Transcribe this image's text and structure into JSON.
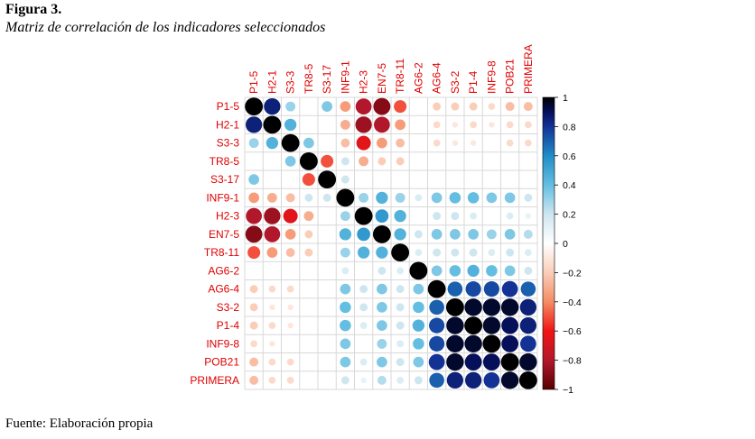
{
  "figure": {
    "label": "Figura 3.",
    "title": "Matriz de correlación de los indicadores seleccionados",
    "source": "Fuente: Elaboración propia"
  },
  "colors": {
    "positive_strong": "#000000",
    "positive": "#053061",
    "neutral": "#ffffff",
    "negative": "#67001f",
    "label": "#e00000"
  },
  "chart_data": {
    "type": "heatmap",
    "style": "correlation-circles",
    "variables": [
      "P1-5",
      "H2-1",
      "S3-3",
      "TR8-5",
      "S3-17",
      "INF9-1",
      "H2-3",
      "EN7-5",
      "TR8-11",
      "AG6-2",
      "AG6-4",
      "S3-2",
      "P1-4",
      "INF9-8",
      "POB21",
      "PRIMERA"
    ],
    "matrix": [
      [
        1.0,
        0.85,
        0.3,
        0.0,
        0.35,
        -0.35,
        -0.8,
        -0.9,
        -0.5,
        0.0,
        -0.2,
        -0.2,
        -0.2,
        -0.15,
        -0.25,
        -0.25
      ],
      [
        0.85,
        1.0,
        0.45,
        0.0,
        0.0,
        -0.3,
        -0.85,
        -0.8,
        -0.35,
        0.0,
        -0.15,
        -0.1,
        -0.15,
        -0.1,
        -0.15,
        -0.15
      ],
      [
        0.3,
        0.45,
        1.0,
        0.35,
        0.0,
        -0.25,
        -0.65,
        -0.35,
        -0.25,
        0.0,
        -0.15,
        -0.1,
        -0.1,
        0.0,
        -0.15,
        -0.15
      ],
      [
        0.0,
        0.0,
        0.35,
        1.0,
        -0.5,
        0.2,
        -0.3,
        -0.2,
        -0.2,
        0.0,
        0.0,
        0.0,
        0.0,
        0.0,
        0.0,
        0.0
      ],
      [
        0.35,
        0.0,
        0.0,
        -0.5,
        1.0,
        0.2,
        0.0,
        0.0,
        0.0,
        0.0,
        0.0,
        0.0,
        0.0,
        0.0,
        0.0,
        0.0
      ],
      [
        -0.35,
        -0.3,
        -0.25,
        0.2,
        0.2,
        1.0,
        0.3,
        0.45,
        0.3,
        0.15,
        0.35,
        0.4,
        0.4,
        0.35,
        0.35,
        0.2
      ],
      [
        -0.8,
        -0.85,
        -0.65,
        -0.3,
        0.0,
        0.3,
        1.0,
        0.55,
        0.45,
        0.0,
        0.2,
        0.2,
        0.15,
        0.0,
        0.15,
        0.1
      ],
      [
        -0.9,
        -0.8,
        -0.35,
        -0.2,
        0.0,
        0.45,
        0.55,
        1.0,
        0.45,
        0.2,
        0.35,
        0.35,
        0.35,
        0.3,
        0.35,
        0.25
      ],
      [
        -0.5,
        -0.35,
        -0.25,
        -0.2,
        0.0,
        0.3,
        0.45,
        0.45,
        1.0,
        0.15,
        0.2,
        0.2,
        0.2,
        0.15,
        0.2,
        0.15
      ],
      [
        0.0,
        0.0,
        0.0,
        0.0,
        0.0,
        0.15,
        0.0,
        0.2,
        0.15,
        1.0,
        0.35,
        0.4,
        0.45,
        0.4,
        0.35,
        0.2
      ],
      [
        -0.2,
        -0.15,
        -0.15,
        0.0,
        0.0,
        0.35,
        0.2,
        0.35,
        0.2,
        0.35,
        1.0,
        0.7,
        0.75,
        0.75,
        0.8,
        0.7
      ],
      [
        -0.2,
        -0.1,
        -0.1,
        0.0,
        0.0,
        0.4,
        0.2,
        0.35,
        0.2,
        0.4,
        0.7,
        1.0,
        0.95,
        0.95,
        0.95,
        0.85
      ],
      [
        -0.2,
        -0.15,
        -0.1,
        0.0,
        0.0,
        0.4,
        0.15,
        0.35,
        0.2,
        0.45,
        0.75,
        0.95,
        1.0,
        0.95,
        0.9,
        0.85
      ],
      [
        -0.15,
        -0.1,
        0.0,
        0.0,
        0.0,
        0.35,
        0.0,
        0.3,
        0.15,
        0.4,
        0.75,
        0.95,
        0.95,
        1.0,
        0.9,
        0.8
      ],
      [
        -0.25,
        -0.15,
        -0.15,
        0.0,
        0.0,
        0.35,
        0.15,
        0.35,
        0.2,
        0.35,
        0.8,
        0.95,
        0.9,
        0.9,
        1.0,
        0.95
      ],
      [
        -0.25,
        -0.15,
        -0.15,
        0.0,
        0.0,
        0.2,
        0.1,
        0.25,
        0.15,
        0.2,
        0.7,
        0.85,
        0.85,
        0.8,
        0.95,
        1.0
      ]
    ],
    "colorbar": {
      "range": [
        -1,
        1
      ],
      "ticks": [
        "1",
        "0.8",
        "0.6",
        "0.4",
        "0.2",
        "0",
        "−0.2",
        "−0.4",
        "−0.6",
        "−0.8",
        "−1"
      ]
    }
  }
}
